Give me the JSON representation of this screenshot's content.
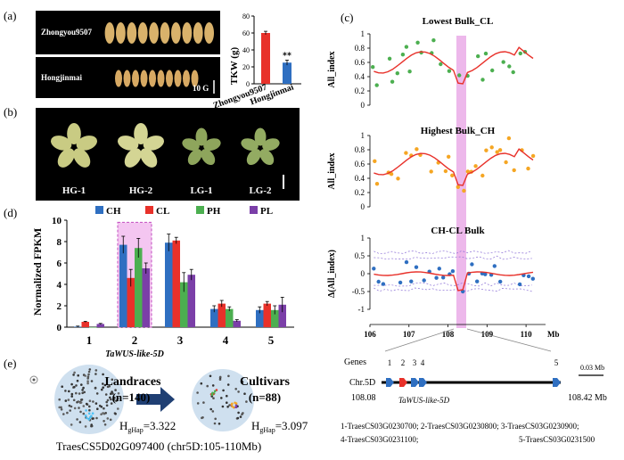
{
  "panel_labels": {
    "a": "(a)",
    "b": "(b)",
    "c": "(c)",
    "d": "(d)",
    "e": "(e)"
  },
  "panel_a": {
    "variety_top": "Zhongyou9507",
    "variety_bottom": "Hongjinmai",
    "scale_label": "10 G",
    "tkw_chart": {
      "type": "bar",
      "ylabel": "TKW (g)",
      "categories": [
        "Zhongyou9507",
        "Hongjinmai"
      ],
      "values": [
        60,
        25
      ],
      "errors": [
        2,
        3
      ],
      "colors": [
        "#e8312a",
        "#2f6fc1"
      ],
      "ylim": [
        0,
        80
      ],
      "yticks": [
        0,
        20,
        40,
        60,
        80
      ],
      "significance": "**"
    }
  },
  "panel_b": {
    "labels": [
      "HG-1",
      "HG-2",
      "LG-1",
      "LG-2"
    ]
  },
  "panel_c": {
    "plots": [
      {
        "title": "Lowest Bulk_CL",
        "ylabel": "All_index",
        "yticks": [
          "1",
          "0.8",
          "0.6",
          "0.4",
          "0.2",
          "0"
        ]
      },
      {
        "title": "Highest Bulk_CH",
        "ylabel": "All_index",
        "yticks": [
          "1",
          "0.8",
          "0.6",
          "0.4",
          "0.2",
          "0"
        ]
      },
      {
        "title": "CH-CL Bulk",
        "ylabel": "Δ(All_index)",
        "yticks": [
          "1",
          "0.5",
          "0",
          "-0.5",
          "-1"
        ]
      }
    ],
    "xticks": [
      "106",
      "107",
      "108",
      "109",
      "110"
    ],
    "xunit": "Mb",
    "genes_label": "Genes",
    "gene_numbers": [
      "1",
      "2",
      "3",
      "4",
      "5"
    ],
    "scale_bar": "0.03 Mb",
    "chr_label": "Chr.5D",
    "chr_start": "108.08",
    "chr_end": "108.42 Mb",
    "highlight_gene": "TaWUS-like-5D",
    "gene_list_line1": "1-TraesCS03G0230700; 2-TraesCS03G0230800; 3-TraesCS03G0230900;",
    "gene_list_line2_left": "4-TraesCS03G0231100;",
    "gene_list_line2_right": "5-TraesCS03G0231500",
    "series_colors": {
      "cl": "#4caf50",
      "ch": "#f5a623",
      "delta": "#2f6fc1",
      "line": "#e8312a",
      "bands": "#8b6fd6"
    },
    "highlight_color": "#e9a6e6"
  },
  "chart_data": [
    {
      "type": "bar",
      "title": "",
      "ylabel": "Normalized FPKM",
      "categories": [
        "1",
        "2",
        "3",
        "4",
        "5"
      ],
      "ylim": [
        0,
        10
      ],
      "yticks": [
        0,
        2,
        4,
        6,
        8,
        10
      ],
      "series": [
        {
          "name": "CH",
          "color": "#2f6fc1",
          "values": [
            0.05,
            7.7,
            7.9,
            1.7,
            1.6
          ],
          "errors": [
            0.05,
            0.8,
            0.8,
            0.3,
            0.3
          ]
        },
        {
          "name": "CL",
          "color": "#e8312a",
          "values": [
            0.5,
            4.6,
            8.1,
            2.2,
            2.2
          ],
          "errors": [
            0.05,
            0.8,
            0.3,
            0.3,
            0.2
          ]
        },
        {
          "name": "PH",
          "color": "#4caf50",
          "values": [
            0.0,
            7.4,
            4.2,
            1.7,
            1.6
          ],
          "errors": [
            0.0,
            0.9,
            0.9,
            0.2,
            0.4
          ]
        },
        {
          "name": "PL",
          "color": "#7b3fa8",
          "values": [
            0.3,
            5.5,
            4.9,
            0.6,
            2.1
          ],
          "errors": [
            0.05,
            0.5,
            0.5,
            0.1,
            0.7
          ]
        }
      ],
      "xlabel_note": "TaWUS-like-5D"
    },
    {
      "type": "bar",
      "title": "",
      "ylabel": "TKW (g)",
      "categories": [
        "Zhongyou9507",
        "Hongjinmai"
      ],
      "values": [
        60,
        25
      ],
      "ylim": [
        0,
        80
      ]
    }
  ],
  "panel_e": {
    "landraces_label": "Landraces",
    "landraces_n": "(n=140)",
    "cultivars_label": "Cultivars",
    "cultivars_n": "(n=88)",
    "landraces_h": "H",
    "landraces_h_sub": "gHap",
    "landraces_h_val": "=3.322",
    "cultivars_h": "H",
    "cultivars_h_sub": "gHap",
    "cultivars_h_val": "=3.097",
    "caption": "TraesCS5D02G097400 (chr5D:105-110Mb)"
  }
}
